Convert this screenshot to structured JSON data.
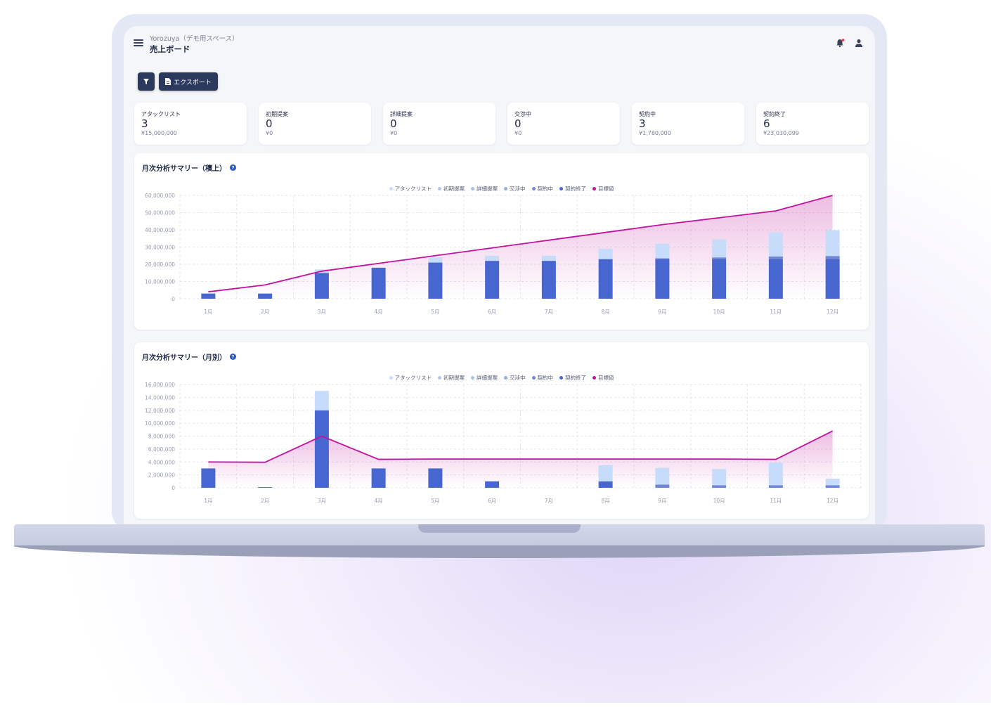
{
  "header": {
    "workspace": "Yorozuya（デモ用スペース）",
    "title": "売上ボード"
  },
  "toolbar": {
    "export_label": "エクスポート"
  },
  "stages": [
    {
      "label": "アタックリスト",
      "count": "3",
      "amount": "¥15,000,000"
    },
    {
      "label": "初期提案",
      "count": "0",
      "amount": "¥0"
    },
    {
      "label": "詳細提案",
      "count": "0",
      "amount": "¥0"
    },
    {
      "label": "交渉中",
      "count": "0",
      "amount": "¥0"
    },
    {
      "label": "契約中",
      "count": "3",
      "amount": "¥1,780,000"
    },
    {
      "label": "契約終了",
      "count": "6",
      "amount": "¥23,030,099"
    }
  ],
  "colors": {
    "attack": "#c6dcfa",
    "initial": "#b3c8f0",
    "detail": "#a7c2ee",
    "nego": "#8fb0e6",
    "contract": "#6f86d6",
    "done": "#4766cf",
    "target": "#c2139b"
  },
  "legend": [
    {
      "label": "アタックリスト",
      "color": "#c6dcfa"
    },
    {
      "label": "初期提案",
      "color": "#b3c8f0"
    },
    {
      "label": "詳細提案",
      "color": "#a7c2ee"
    },
    {
      "label": "交渉中",
      "color": "#8fb0e6"
    },
    {
      "label": "契約中",
      "color": "#6f86d6"
    },
    {
      "label": "契約終了",
      "color": "#4766cf"
    },
    {
      "label": "目標値",
      "color": "#c2139b"
    }
  ],
  "chart_data": [
    {
      "type": "bar",
      "title": "月次分析サマリー（積上）",
      "categories": [
        "1月",
        "2月",
        "3月",
        "4月",
        "5月",
        "6月",
        "7月",
        "8月",
        "9月",
        "10月",
        "11月",
        "12月"
      ],
      "ylim": [
        0,
        60000000
      ],
      "yticks": [
        "0",
        "10,000,000",
        "20,000,000",
        "30,000,000",
        "40,000,000",
        "50,000,000",
        "60,000,000"
      ],
      "series": [
        {
          "name": "契約終了",
          "values": [
            3000000,
            3000000,
            15000000,
            18000000,
            21000000,
            22000000,
            22000000,
            23000000,
            23000000,
            23000000,
            23000000,
            23000000
          ]
        },
        {
          "name": "契約中",
          "values": [
            0,
            0,
            0,
            0,
            0,
            0,
            0,
            0,
            500000,
            1000000,
            1500000,
            1800000
          ]
        },
        {
          "name": "アタックリスト",
          "values": [
            0,
            0,
            2000000,
            0,
            3000000,
            3000000,
            3000000,
            6000000,
            8500000,
            10500000,
            14000000,
            15000000
          ]
        }
      ],
      "target": [
        4000000,
        8000000,
        16000000,
        20500000,
        25000000,
        29500000,
        34000000,
        38500000,
        43000000,
        47000000,
        51000000,
        60000000
      ]
    },
    {
      "type": "bar",
      "title": "月次分析サマリー（月別）",
      "categories": [
        "1月",
        "2月",
        "3月",
        "4月",
        "5月",
        "6月",
        "7月",
        "8月",
        "9月",
        "10月",
        "11月",
        "12月"
      ],
      "ylim": [
        0,
        16000000
      ],
      "yticks": [
        "0",
        "2,000,000",
        "4,000,000",
        "6,000,000",
        "8,000,000",
        "10,000,000",
        "12,000,000",
        "14,000,000",
        "16,000,000"
      ],
      "series": [
        {
          "name": "契約終了",
          "values": [
            3000000,
            100000,
            12000000,
            3000000,
            3000000,
            1000000,
            0,
            1000000,
            0,
            0,
            0,
            0
          ]
        },
        {
          "name": "契約中",
          "values": [
            0,
            0,
            0,
            0,
            0,
            0,
            0,
            0,
            500000,
            400000,
            400000,
            400000
          ]
        },
        {
          "name": "アタックリスト",
          "values": [
            0,
            0,
            3000000,
            0,
            0,
            0,
            0,
            2500000,
            2600000,
            2500000,
            3500000,
            1000000
          ]
        }
      ],
      "target": [
        4000000,
        3950000,
        8000000,
        4400000,
        4450000,
        4450000,
        4450000,
        4450000,
        4450000,
        4450000,
        4400000,
        8800000
      ]
    }
  ]
}
